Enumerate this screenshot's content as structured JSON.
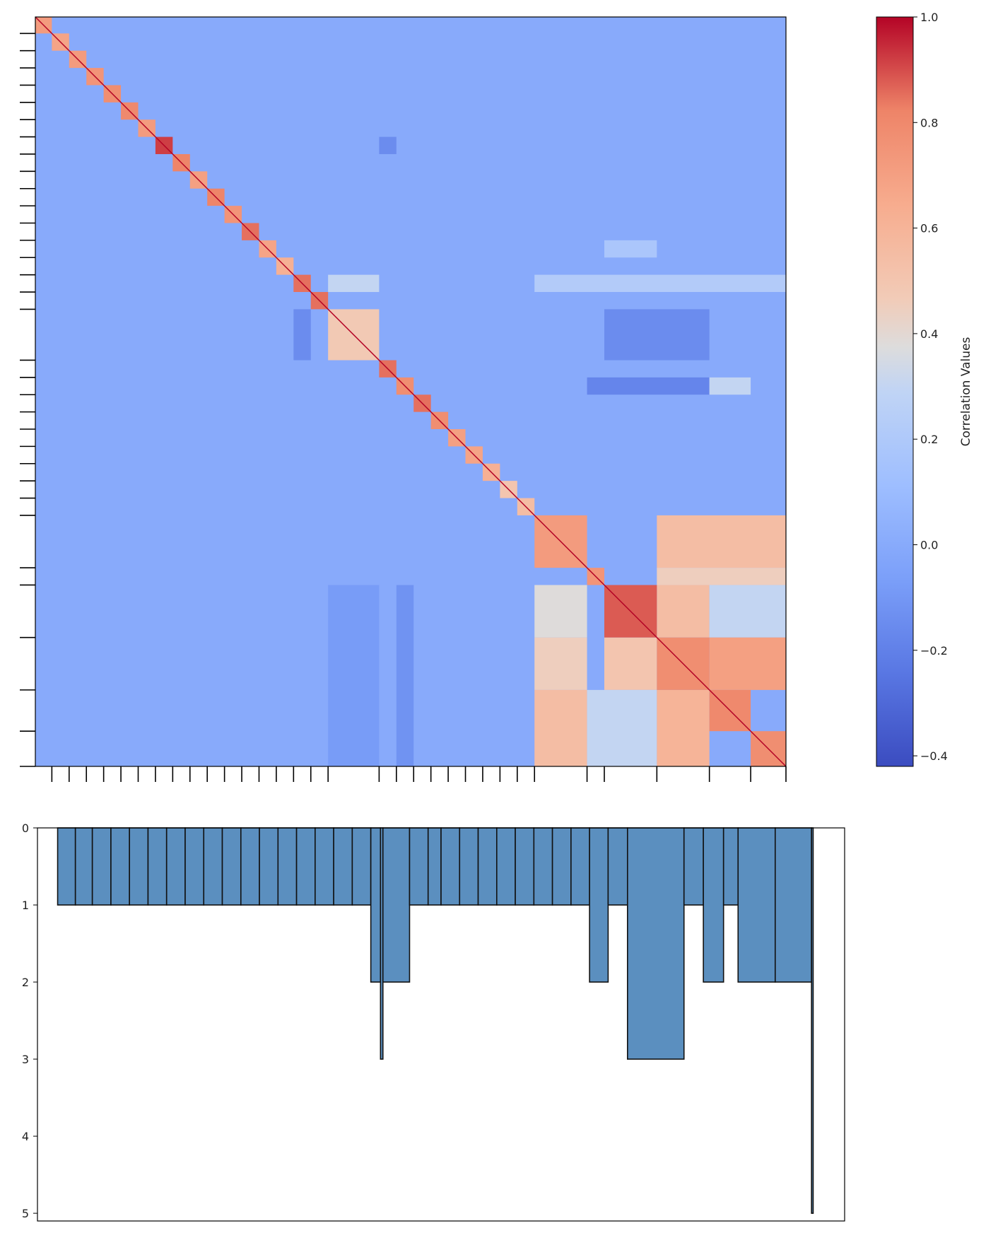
{
  "chart_data": [
    {
      "type": "heatmap",
      "title": "",
      "colormap": "coolwarm",
      "vmin": -0.42,
      "vmax": 1.0,
      "diagonal_value": 1.0,
      "background_value": 0.0,
      "colorbar": {
        "label": "Correlation Values",
        "ticks": [
          -0.4,
          -0.2,
          0.0,
          0.2,
          0.4,
          0.6,
          0.8,
          1.0
        ],
        "tick_labels": [
          "−0.4",
          "−0.2",
          "0.0",
          "0.2",
          "0.4",
          "0.6",
          "0.8",
          "1.0"
        ]
      },
      "axes_ticks_labeled": false,
      "blocks": [
        {
          "start": 0,
          "end": 0.022,
          "value": 0.72
        },
        {
          "start": 0.022,
          "end": 0.045,
          "value": 0.68
        },
        {
          "start": 0.045,
          "end": 0.068,
          "value": 0.72
        },
        {
          "start": 0.068,
          "end": 0.091,
          "value": 0.75
        },
        {
          "start": 0.091,
          "end": 0.114,
          "value": 0.78
        },
        {
          "start": 0.114,
          "end": 0.137,
          "value": 0.8
        },
        {
          "start": 0.137,
          "end": 0.16,
          "value": 0.72
        },
        {
          "start": 0.16,
          "end": 0.183,
          "value": 0.92
        },
        {
          "start": 0.183,
          "end": 0.206,
          "value": 0.82
        },
        {
          "start": 0.206,
          "end": 0.229,
          "value": 0.7
        },
        {
          "start": 0.229,
          "end": 0.252,
          "value": 0.82
        },
        {
          "start": 0.252,
          "end": 0.275,
          "value": 0.75
        },
        {
          "start": 0.275,
          "end": 0.298,
          "value": 0.85
        },
        {
          "start": 0.298,
          "end": 0.321,
          "value": 0.68
        },
        {
          "start": 0.321,
          "end": 0.344,
          "value": 0.62
        },
        {
          "start": 0.344,
          "end": 0.367,
          "value": 0.85
        },
        {
          "start": 0.367,
          "end": 0.39,
          "value": 0.85
        },
        {
          "start": 0.39,
          "end": 0.458,
          "value": 0.48
        },
        {
          "start": 0.458,
          "end": 0.481,
          "value": 0.85
        },
        {
          "start": 0.481,
          "end": 0.504,
          "value": 0.78
        },
        {
          "start": 0.504,
          "end": 0.527,
          "value": 0.85
        },
        {
          "start": 0.527,
          "end": 0.55,
          "value": 0.78
        },
        {
          "start": 0.55,
          "end": 0.573,
          "value": 0.7
        },
        {
          "start": 0.573,
          "end": 0.596,
          "value": 0.68
        },
        {
          "start": 0.596,
          "end": 0.619,
          "value": 0.62
        },
        {
          "start": 0.619,
          "end": 0.642,
          "value": 0.5
        },
        {
          "start": 0.642,
          "end": 0.665,
          "value": 0.55
        },
        {
          "start": 0.665,
          "end": 0.735,
          "value": 0.72
        },
        {
          "start": 0.735,
          "end": 0.758,
          "value": 0.75
        },
        {
          "start": 0.758,
          "end": 0.828,
          "value": 0.88
        },
        {
          "start": 0.828,
          "end": 0.898,
          "value": 0.78
        },
        {
          "start": 0.898,
          "end": 0.953,
          "value": 0.8
        },
        {
          "start": 0.953,
          "end": 1.0,
          "value": 0.78
        }
      ],
      "offdiag_blocks": [
        {
          "rows": [
            0.665,
            0.735
          ],
          "cols": [
            0.828,
            1.0
          ],
          "value": 0.55
        },
        {
          "rows": [
            0.758,
            0.828
          ],
          "cols": [
            0.665,
            0.735
          ],
          "value": 0.38
        },
        {
          "rows": [
            0.758,
            0.828
          ],
          "cols": [
            0.828,
            0.898
          ],
          "value": 0.55
        },
        {
          "rows": [
            0.758,
            0.828
          ],
          "cols": [
            0.898,
            1.0
          ],
          "value": 0.3
        },
        {
          "rows": [
            0.828,
            0.898
          ],
          "cols": [
            0.665,
            0.735
          ],
          "value": 0.45
        },
        {
          "rows": [
            0.828,
            0.898
          ],
          "cols": [
            0.758,
            0.828
          ],
          "value": 0.5
        },
        {
          "rows": [
            0.828,
            0.898
          ],
          "cols": [
            0.898,
            1.0
          ],
          "value": 0.7
        },
        {
          "rows": [
            0.898,
            1.0
          ],
          "cols": [
            0.665,
            0.735
          ],
          "value": 0.55
        },
        {
          "rows": [
            0.898,
            1.0
          ],
          "cols": [
            0.735,
            0.828
          ],
          "value": 0.3
        },
        {
          "rows": [
            0.898,
            1.0
          ],
          "cols": [
            0.828,
            0.898
          ],
          "value": 0.6
        },
        {
          "rows": [
            0.735,
            0.758
          ],
          "cols": [
            0.828,
            1.0
          ],
          "value": 0.45
        },
        {
          "rows": [
            0.39,
            0.458
          ],
          "cols": [
            0.344,
            0.367
          ],
          "value": -0.15
        },
        {
          "rows": [
            0.344,
            0.367
          ],
          "cols": [
            0.39,
            0.458
          ],
          "value": 0.3
        },
        {
          "rows": [
            0.758,
            1.0
          ],
          "cols": [
            0.39,
            0.458
          ],
          "value": -0.08
        },
        {
          "rows": [
            0.758,
            1.0
          ],
          "cols": [
            0.481,
            0.504
          ],
          "value": -0.12
        },
        {
          "rows": [
            0.16,
            0.183
          ],
          "cols": [
            0.458,
            0.481
          ],
          "value": -0.15
        },
        {
          "rows": [
            0.481,
            0.504
          ],
          "cols": [
            0.735,
            0.898
          ],
          "value": -0.18
        },
        {
          "rows": [
            0.481,
            0.504
          ],
          "cols": [
            0.898,
            0.953
          ],
          "value": 0.3
        },
        {
          "rows": [
            0.39,
            0.458
          ],
          "cols": [
            0.758,
            0.898
          ],
          "value": -0.15
        },
        {
          "rows": [
            0.344,
            0.367
          ],
          "cols": [
            0.665,
            1.0
          ],
          "value": 0.22
        },
        {
          "rows": [
            0.298,
            0.321
          ],
          "cols": [
            0.758,
            0.828
          ],
          "value": 0.18
        }
      ]
    },
    {
      "type": "bar",
      "title": "",
      "xlabel": "",
      "ylabel": "",
      "y_inverted": true,
      "ylim": [
        0,
        5.1
      ],
      "yticks": [
        0,
        1,
        2,
        3,
        4,
        5
      ],
      "color": "#5b8fbf",
      "bars": [
        {
          "x0": 0.025,
          "x1": 0.047,
          "value": 1
        },
        {
          "x0": 0.047,
          "x1": 0.068,
          "value": 1
        },
        {
          "x0": 0.068,
          "x1": 0.091,
          "value": 1
        },
        {
          "x0": 0.091,
          "x1": 0.114,
          "value": 1
        },
        {
          "x0": 0.114,
          "x1": 0.137,
          "value": 1
        },
        {
          "x0": 0.137,
          "x1": 0.16,
          "value": 1
        },
        {
          "x0": 0.16,
          "x1": 0.183,
          "value": 1
        },
        {
          "x0": 0.183,
          "x1": 0.206,
          "value": 1
        },
        {
          "x0": 0.206,
          "x1": 0.229,
          "value": 1
        },
        {
          "x0": 0.229,
          "x1": 0.252,
          "value": 1
        },
        {
          "x0": 0.252,
          "x1": 0.275,
          "value": 1
        },
        {
          "x0": 0.275,
          "x1": 0.298,
          "value": 1
        },
        {
          "x0": 0.298,
          "x1": 0.321,
          "value": 1
        },
        {
          "x0": 0.321,
          "x1": 0.344,
          "value": 1
        },
        {
          "x0": 0.344,
          "x1": 0.367,
          "value": 1
        },
        {
          "x0": 0.367,
          "x1": 0.39,
          "value": 1
        },
        {
          "x0": 0.39,
          "x1": 0.413,
          "value": 1
        },
        {
          "x0": 0.413,
          "x1": 0.425,
          "value": 2
        },
        {
          "x0": 0.425,
          "x1": 0.428,
          "value": 3
        },
        {
          "x0": 0.428,
          "x1": 0.461,
          "value": 2
        },
        {
          "x0": 0.461,
          "x1": 0.484,
          "value": 1
        },
        {
          "x0": 0.484,
          "x1": 0.5,
          "value": 1
        },
        {
          "x0": 0.5,
          "x1": 0.523,
          "value": 1
        },
        {
          "x0": 0.523,
          "x1": 0.546,
          "value": 1
        },
        {
          "x0": 0.546,
          "x1": 0.569,
          "value": 1
        },
        {
          "x0": 0.569,
          "x1": 0.592,
          "value": 1
        },
        {
          "x0": 0.592,
          "x1": 0.615,
          "value": 1
        },
        {
          "x0": 0.615,
          "x1": 0.638,
          "value": 1
        },
        {
          "x0": 0.638,
          "x1": 0.661,
          "value": 1
        },
        {
          "x0": 0.661,
          "x1": 0.684,
          "value": 1
        },
        {
          "x0": 0.684,
          "x1": 0.707,
          "value": 2
        },
        {
          "x0": 0.707,
          "x1": 0.731,
          "value": 1
        },
        {
          "x0": 0.731,
          "x1": 0.801,
          "value": 3
        },
        {
          "x0": 0.801,
          "x1": 0.825,
          "value": 1
        },
        {
          "x0": 0.825,
          "x1": 0.85,
          "value": 2
        },
        {
          "x0": 0.85,
          "x1": 0.868,
          "value": 1
        },
        {
          "x0": 0.868,
          "x1": 0.914,
          "value": 2
        },
        {
          "x0": 0.914,
          "x1": 0.959,
          "value": 2
        },
        {
          "x0": 0.959,
          "x1": 0.961,
          "value": 5
        }
      ]
    }
  ]
}
